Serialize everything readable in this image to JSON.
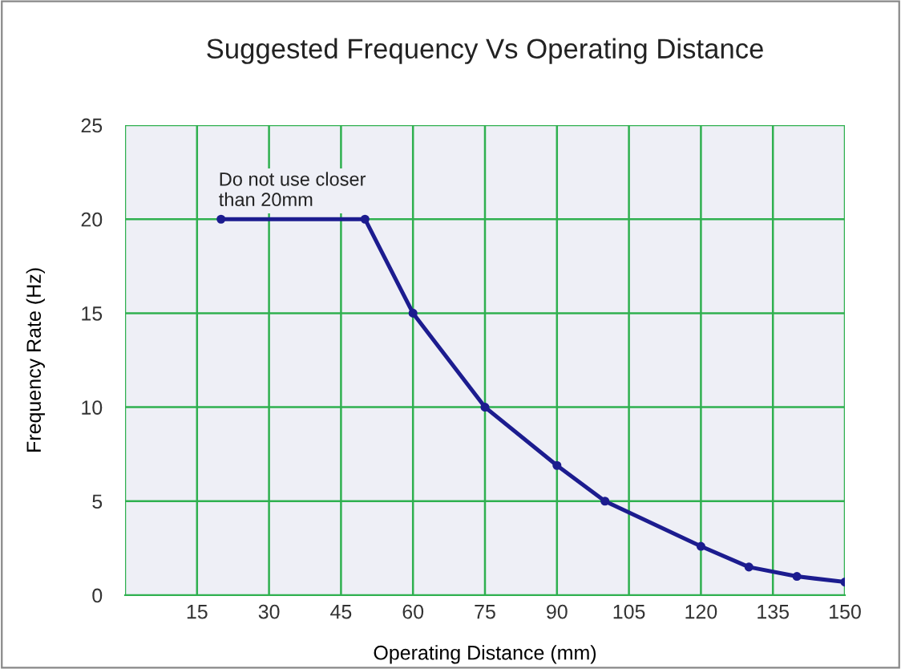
{
  "chart_data": {
    "type": "line",
    "title": "Suggested Frequency Vs Operating Distance",
    "xlabel": "Operating Distance (mm)",
    "ylabel": "Frequency Rate (Hz)",
    "annotations": [
      "Do not use closer\nthan 20mm"
    ],
    "series": [
      {
        "color": "#1c1c8f",
        "x": [
          20,
          50,
          60,
          75,
          90,
          100,
          120,
          130,
          140,
          150
        ],
        "values": [
          20,
          20,
          15,
          10,
          6.9,
          5,
          2.6,
          1.5,
          1.0,
          0.7
        ]
      }
    ],
    "xlim": [
      0,
      150
    ],
    "xticks": [
      {
        "value": 0,
        "label": null
      },
      15,
      30,
      45,
      60,
      75,
      90,
      105,
      120,
      135,
      150
    ],
    "ylim": [
      0,
      25
    ],
    "yticks": [
      0,
      5,
      10,
      15,
      20,
      25
    ],
    "grid": true,
    "marker": "circle",
    "line_style": "solid"
  }
}
